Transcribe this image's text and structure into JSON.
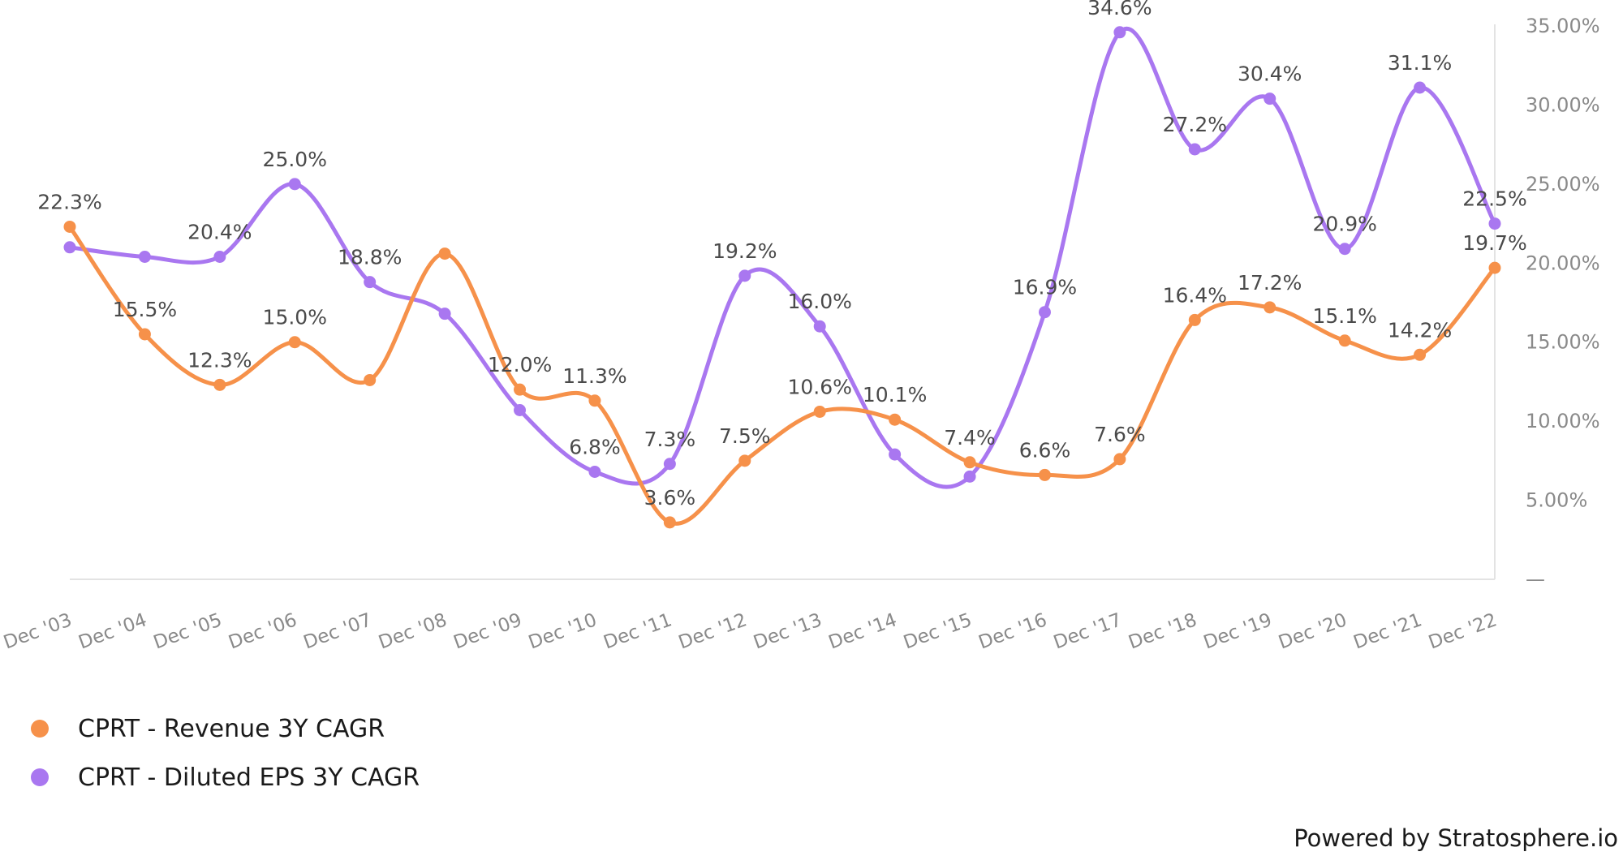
{
  "chart_data": {
    "type": "line",
    "categories": [
      "Dec '03",
      "Dec '04",
      "Dec '05",
      "Dec '06",
      "Dec '07",
      "Dec '08",
      "Dec '09",
      "Dec '10",
      "Dec '11",
      "Dec '12",
      "Dec '13",
      "Dec '14",
      "Dec '15",
      "Dec '16",
      "Dec '17",
      "Dec '18",
      "Dec '19",
      "Dec '20",
      "Dec '21",
      "Dec '22"
    ],
    "series": [
      {
        "name": "CPRT - Revenue 3Y CAGR",
        "color": "#f6914a",
        "values": [
          22.3,
          15.5,
          12.3,
          15.0,
          12.6,
          20.6,
          12.0,
          11.3,
          3.6,
          7.5,
          10.6,
          10.1,
          7.4,
          6.6,
          7.6,
          16.4,
          17.2,
          15.1,
          14.2,
          19.7
        ],
        "labels": [
          "22.3%",
          "15.5%",
          "12.3%",
          "15.0%",
          "",
          "",
          "12.0%",
          "11.3%",
          "3.6%",
          "7.5%",
          "10.6%",
          "10.1%",
          "7.4%",
          "6.6%",
          "7.6%",
          "16.4%",
          "17.2%",
          "15.1%",
          "14.2%",
          "19.7%"
        ]
      },
      {
        "name": "CPRT - Diluted EPS 3Y CAGR",
        "color": "#a977f0",
        "values": [
          21.0,
          20.4,
          20.4,
          25.0,
          18.8,
          16.8,
          10.7,
          6.8,
          7.3,
          19.2,
          16.0,
          7.9,
          6.5,
          16.9,
          34.6,
          27.2,
          30.4,
          20.9,
          31.1,
          22.5
        ],
        "labels": [
          "",
          "",
          "20.4%",
          "25.0%",
          "18.8%",
          "",
          "",
          "6.8%",
          "7.3%",
          "19.2%",
          "16.0%",
          "",
          "",
          "16.9%",
          "34.6%",
          "27.2%",
          "30.4%",
          "20.9%",
          "31.1%",
          "22.5%"
        ]
      }
    ],
    "yticks": [
      "35.00%",
      "30.00%",
      "25.00%",
      "20.00%",
      "15.00%",
      "10.00%",
      "5.00%",
      "—"
    ],
    "ylim": [
      0,
      35
    ],
    "grid": false,
    "legend": "bottom-left"
  },
  "credit": "Powered by Stratosphere.io"
}
